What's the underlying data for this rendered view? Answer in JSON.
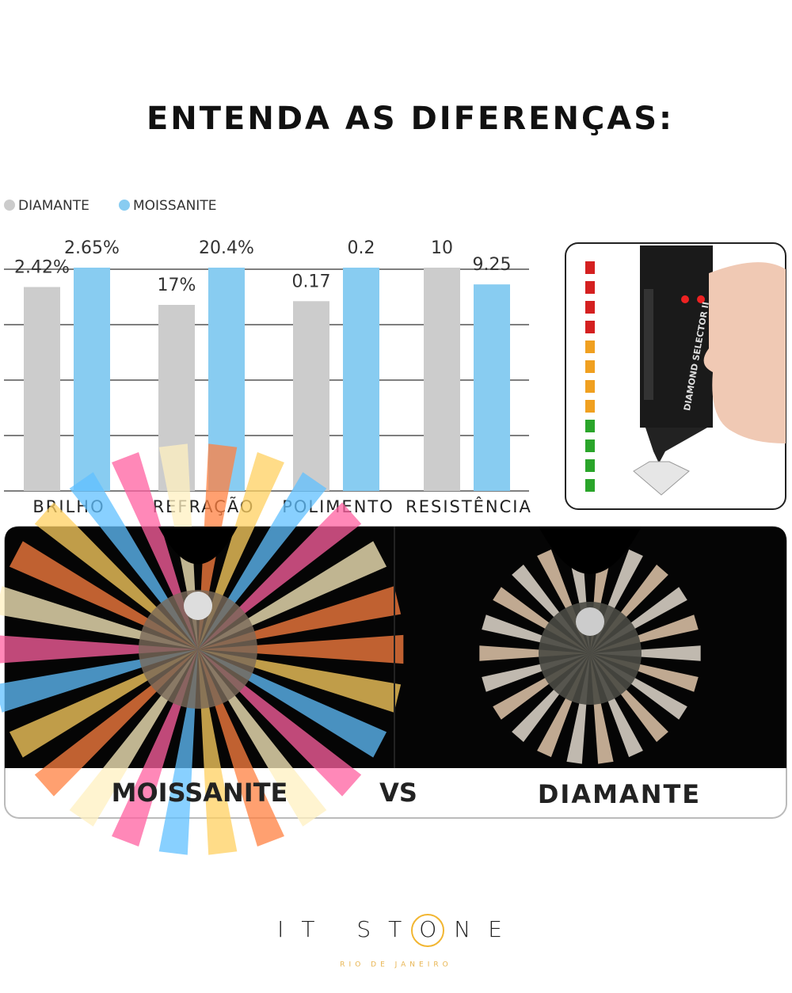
{
  "title": "ENTENDA AS DIFERENÇAS:",
  "chart_data": {
    "type": "bar",
    "categories": [
      "BRILHO",
      "REFRAÇÃO",
      "POLIMENTO",
      "RESISTÊNCIA"
    ],
    "series": [
      {
        "name": "DIAMANTE",
        "color": "#cccccc",
        "values": [
          2.42,
          17,
          0.17,
          10
        ],
        "value_labels": [
          "2.42%",
          "17%",
          "0.17",
          "10"
        ]
      },
      {
        "name": "MOISSANITE",
        "color": "#88ccf1",
        "values": [
          2.65,
          20.4,
          0.2,
          9.25
        ],
        "value_labels": [
          "2.65%",
          "20.4%",
          "0.2",
          "9.25"
        ]
      }
    ],
    "grid": true,
    "legend": "top-left"
  },
  "device": {
    "label": "DIAMOND SELECTOR II"
  },
  "comparison": {
    "left": "MOISSANITE",
    "vs": "VS",
    "right": "DIAMANTE"
  },
  "logo": {
    "name": "IT STONE",
    "tagline": "RIO DE JANEIRO"
  }
}
